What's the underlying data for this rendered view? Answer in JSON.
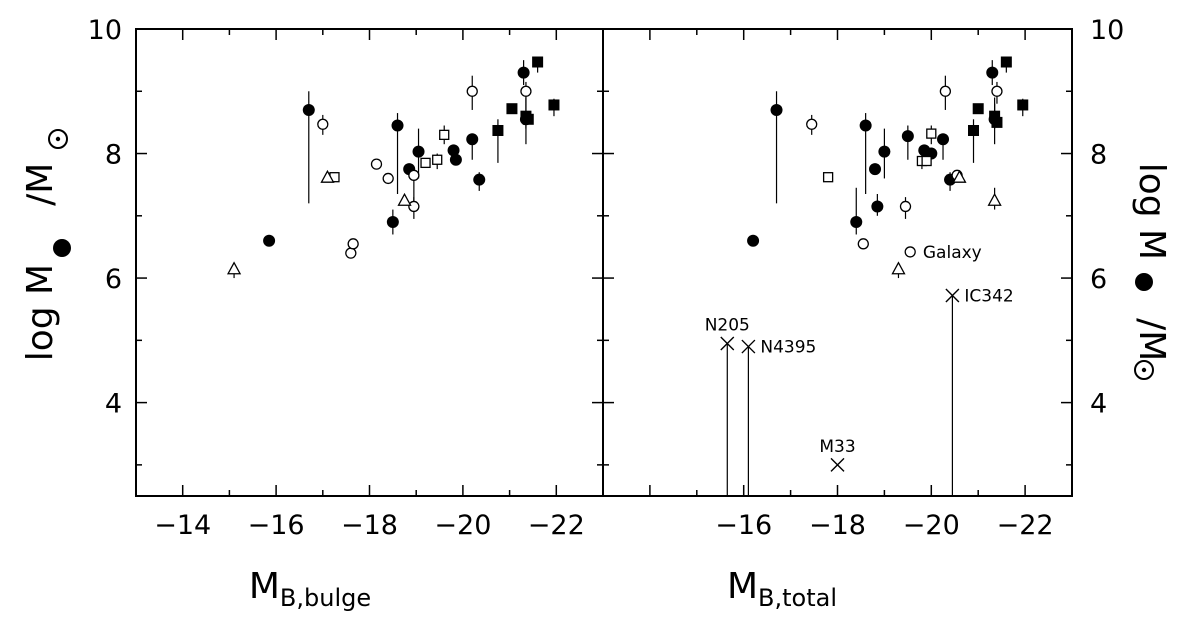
{
  "chart_data": [
    {
      "type": "scatter",
      "panel": "left",
      "xlabel_main": "M",
      "xlabel_sub": "B,bulge",
      "ylabel_parts": [
        "log M",
        "/M"
      ],
      "xlim": [
        -13,
        -23
      ],
      "ylim": [
        2.5,
        10
      ],
      "xticks": [
        -14,
        -16,
        -18,
        -20,
        -22
      ],
      "xtick_labels": [
        "−14",
        "−16",
        "−18",
        "−20",
        "−22"
      ],
      "yticks": [
        4,
        6,
        8,
        10
      ],
      "ytick_labels": [
        "4",
        "6",
        "8",
        "10"
      ],
      "series": [
        {
          "marker": "filled-circle",
          "points": [
            {
              "x": -15.85,
              "y": 6.6
            },
            {
              "x": -16.7,
              "y": 8.7,
              "elo": 7.2,
              "ehi": 9.0
            },
            {
              "x": -18.5,
              "y": 6.9,
              "elo": 6.7,
              "ehi": 7.1
            },
            {
              "x": -18.6,
              "y": 8.45,
              "elo": 7.35,
              "ehi": 8.65
            },
            {
              "x": -18.85,
              "y": 7.75
            },
            {
              "x": -19.05,
              "y": 8.03,
              "elo": 7.6,
              "ehi": 8.4
            },
            {
              "x": -19.8,
              "y": 8.05
            },
            {
              "x": -19.85,
              "y": 7.9
            },
            {
              "x": -20.2,
              "y": 8.23,
              "elo": 7.9,
              "ehi": 8.3
            },
            {
              "x": -20.35,
              "y": 7.58,
              "elo": 7.4,
              "ehi": 7.7
            },
            {
              "x": -21.3,
              "y": 9.3,
              "elo": 9.1,
              "ehi": 9.5
            },
            {
              "x": -21.35,
              "y": 8.55,
              "elo": 8.15,
              "ehi": 8.9
            }
          ]
        },
        {
          "marker": "open-circle",
          "points": [
            {
              "x": -17.0,
              "y": 8.47,
              "elo": 8.3,
              "ehi": 8.62
            },
            {
              "x": -17.6,
              "y": 6.4
            },
            {
              "x": -17.65,
              "y": 6.55
            },
            {
              "x": -18.15,
              "y": 7.83
            },
            {
              "x": -18.4,
              "y": 7.6
            },
            {
              "x": -18.95,
              "y": 7.65,
              "elo": 7.1,
              "ehi": 7.75
            },
            {
              "x": -18.95,
              "y": 7.15,
              "elo": 6.95,
              "ehi": 7.3
            },
            {
              "x": -20.2,
              "y": 9.0,
              "elo": 8.7,
              "ehi": 9.25
            },
            {
              "x": -21.35,
              "y": 9.0,
              "elo": 8.8,
              "ehi": 9.15
            }
          ]
        },
        {
          "marker": "filled-square",
          "points": [
            {
              "x": -20.75,
              "y": 8.37,
              "elo": 7.85,
              "ehi": 8.55
            },
            {
              "x": -21.05,
              "y": 8.72
            },
            {
              "x": -21.35,
              "y": 8.6,
              "elo": 8.4,
              "ehi": 8.8
            },
            {
              "x": -21.4,
              "y": 8.55
            },
            {
              "x": -21.6,
              "y": 9.47,
              "elo": 9.3,
              "ehi": 9.55
            },
            {
              "x": -21.95,
              "y": 8.78,
              "elo": 8.6,
              "ehi": 8.88
            }
          ]
        },
        {
          "marker": "open-square",
          "points": [
            {
              "x": -17.25,
              "y": 7.62
            },
            {
              "x": -19.2,
              "y": 7.85
            },
            {
              "x": -19.45,
              "y": 7.9,
              "elo": 7.75,
              "ehi": 8.0
            },
            {
              "x": -19.6,
              "y": 8.3,
              "elo": 8.15,
              "ehi": 8.45
            }
          ]
        },
        {
          "marker": "open-triangle",
          "points": [
            {
              "x": -15.1,
              "y": 6.15,
              "elo": 6.0,
              "ehi": 6.2
            },
            {
              "x": -17.1,
              "y": 7.62
            },
            {
              "x": -18.75,
              "y": 7.25
            }
          ]
        }
      ],
      "annotations": []
    },
    {
      "type": "scatter",
      "panel": "right",
      "xlabel_main": "M",
      "xlabel_sub": "B,total",
      "ylabel_parts": [
        "log M",
        "/M"
      ],
      "xlim": [
        -13,
        -23
      ],
      "ylim": [
        2.5,
        10
      ],
      "xticks": [
        -16,
        -18,
        -20,
        -22
      ],
      "xtick_labels": [
        "−16",
        "−18",
        "−20",
        "−22"
      ],
      "yticks": [
        4,
        6,
        8,
        10
      ],
      "ytick_labels": [
        "4",
        "6",
        "8",
        "10"
      ],
      "series": [
        {
          "marker": "filled-circle",
          "points": [
            {
              "x": -16.2,
              "y": 6.6
            },
            {
              "x": -16.7,
              "y": 8.7,
              "elo": 7.2,
              "ehi": 9.0
            },
            {
              "x": -18.4,
              "y": 6.9,
              "elo": 6.7,
              "ehi": 7.45
            },
            {
              "x": -18.6,
              "y": 8.45,
              "elo": 7.35,
              "ehi": 8.65
            },
            {
              "x": -18.8,
              "y": 7.75
            },
            {
              "x": -18.85,
              "y": 7.15,
              "elo": 7.0,
              "ehi": 7.35
            },
            {
              "x": -19.0,
              "y": 8.03,
              "elo": 7.6,
              "ehi": 8.4
            },
            {
              "x": -19.5,
              "y": 8.28,
              "elo": 7.9,
              "ehi": 8.45
            },
            {
              "x": -19.85,
              "y": 8.05
            },
            {
              "x": -20.0,
              "y": 8.0
            },
            {
              "x": -20.25,
              "y": 8.23,
              "elo": 7.9,
              "ehi": 8.3
            },
            {
              "x": -20.4,
              "y": 7.58,
              "elo": 7.4,
              "ehi": 7.7
            },
            {
              "x": -21.3,
              "y": 9.3,
              "elo": 9.1,
              "ehi": 9.5
            },
            {
              "x": -21.35,
              "y": 8.55,
              "elo": 8.15,
              "ehi": 8.9
            }
          ]
        },
        {
          "marker": "open-circle",
          "points": [
            {
              "x": -17.45,
              "y": 8.47,
              "elo": 8.3,
              "ehi": 8.62
            },
            {
              "x": -18.55,
              "y": 6.55
            },
            {
              "x": -19.45,
              "y": 7.15,
              "elo": 6.95,
              "ehi": 7.3
            },
            {
              "x": -19.55,
              "y": 6.42
            },
            {
              "x": -20.3,
              "y": 9.0,
              "elo": 8.7,
              "ehi": 9.25
            },
            {
              "x": -20.55,
              "y": 7.65
            },
            {
              "x": -21.4,
              "y": 9.0,
              "elo": 8.8,
              "ehi": 9.15
            }
          ]
        },
        {
          "marker": "filled-square",
          "points": [
            {
              "x": -20.9,
              "y": 8.37,
              "elo": 7.85,
              "ehi": 8.55
            },
            {
              "x": -21.0,
              "y": 8.72
            },
            {
              "x": -21.35,
              "y": 8.6,
              "elo": 8.4,
              "ehi": 8.8
            },
            {
              "x": -21.4,
              "y": 8.5
            },
            {
              "x": -21.6,
              "y": 9.47,
              "elo": 9.3,
              "ehi": 9.55
            },
            {
              "x": -21.95,
              "y": 8.78,
              "elo": 8.6,
              "ehi": 8.88
            }
          ]
        },
        {
          "marker": "open-square",
          "points": [
            {
              "x": -17.8,
              "y": 7.62
            },
            {
              "x": -19.8,
              "y": 7.88,
              "elo": 7.75,
              "ehi": 8.0
            },
            {
              "x": -19.9,
              "y": 7.88
            },
            {
              "x": -20.0,
              "y": 8.32,
              "elo": 8.15,
              "ehi": 8.45
            }
          ]
        },
        {
          "marker": "open-triangle",
          "points": [
            {
              "x": -19.3,
              "y": 6.15,
              "elo": 6.0,
              "ehi": 6.2
            },
            {
              "x": -20.6,
              "y": 7.62
            },
            {
              "x": -21.35,
              "y": 7.25,
              "elo": 7.1,
              "ehi": 7.45
            }
          ]
        },
        {
          "marker": "cross",
          "points": [
            {
              "x": -15.65,
              "y": 4.95,
              "drop": 2.5,
              "label": "N205",
              "label_pos": "above"
            },
            {
              "x": -16.1,
              "y": 4.9,
              "drop": 2.5,
              "label": "N4395",
              "label_pos": "right"
            },
            {
              "x": -18.0,
              "y": 3.0,
              "label": "M33",
              "label_pos": "above"
            },
            {
              "x": -20.45,
              "y": 5.72,
              "drop": 2.5,
              "label": "IC342",
              "label_pos": "right"
            }
          ]
        }
      ],
      "annotations": [
        {
          "text": "Galaxy",
          "x": -19.65,
          "y": 6.42
        }
      ]
    }
  ]
}
